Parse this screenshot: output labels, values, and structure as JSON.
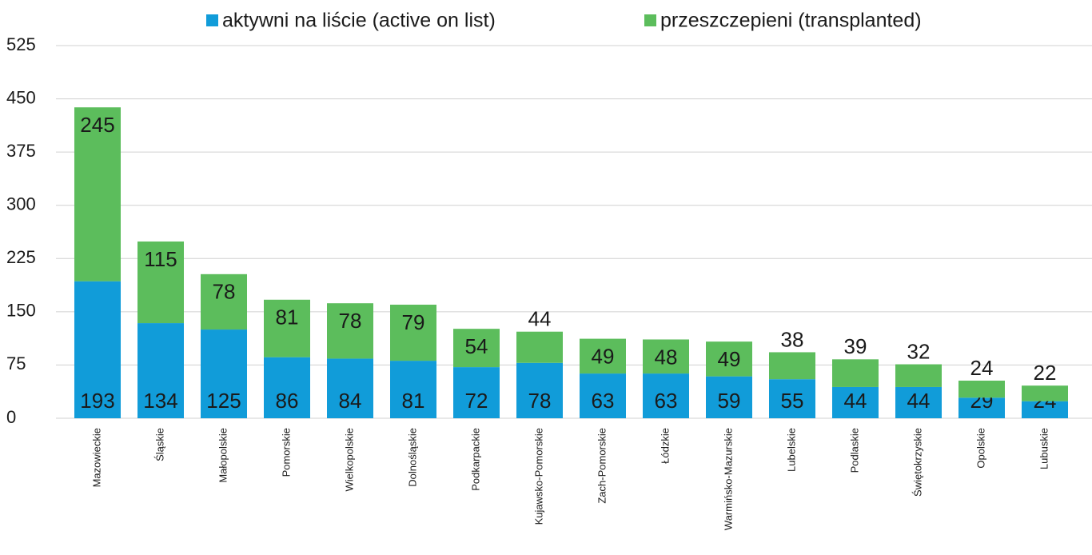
{
  "chart_data": {
    "type": "stacked_bar",
    "categories": [
      "Mazowieckie",
      "Śląskie",
      "Małopolskie",
      "Pomorskie",
      "Wielkopolskie",
      "Dolnośląskie",
      "Podkarpackie",
      "Kujawsko-Pomorskie",
      "Zach-Pomorskie",
      "Łódzkie",
      "Warmińsko-Mazurskie",
      "Lubelskie",
      "Podlaskie",
      "Świętokrzyskie",
      "Opolskie",
      "Lubuskie"
    ],
    "series": [
      {
        "name": "aktywni na liście (active on list)",
        "color": "#119cd9",
        "values": [
          193,
          134,
          125,
          86,
          84,
          81,
          72,
          78,
          63,
          63,
          59,
          55,
          44,
          44,
          29,
          24
        ]
      },
      {
        "name": "przeszczepieni (transplanted)",
        "color": "#5cbd5c",
        "values": [
          245,
          115,
          78,
          81,
          78,
          79,
          54,
          44,
          49,
          48,
          49,
          38,
          39,
          32,
          24,
          22
        ]
      }
    ],
    "ylim": [
      0,
      525
    ],
    "yticks": [
      0,
      75,
      150,
      225,
      300,
      375,
      450,
      525
    ],
    "grid": true,
    "legend": "top"
  }
}
